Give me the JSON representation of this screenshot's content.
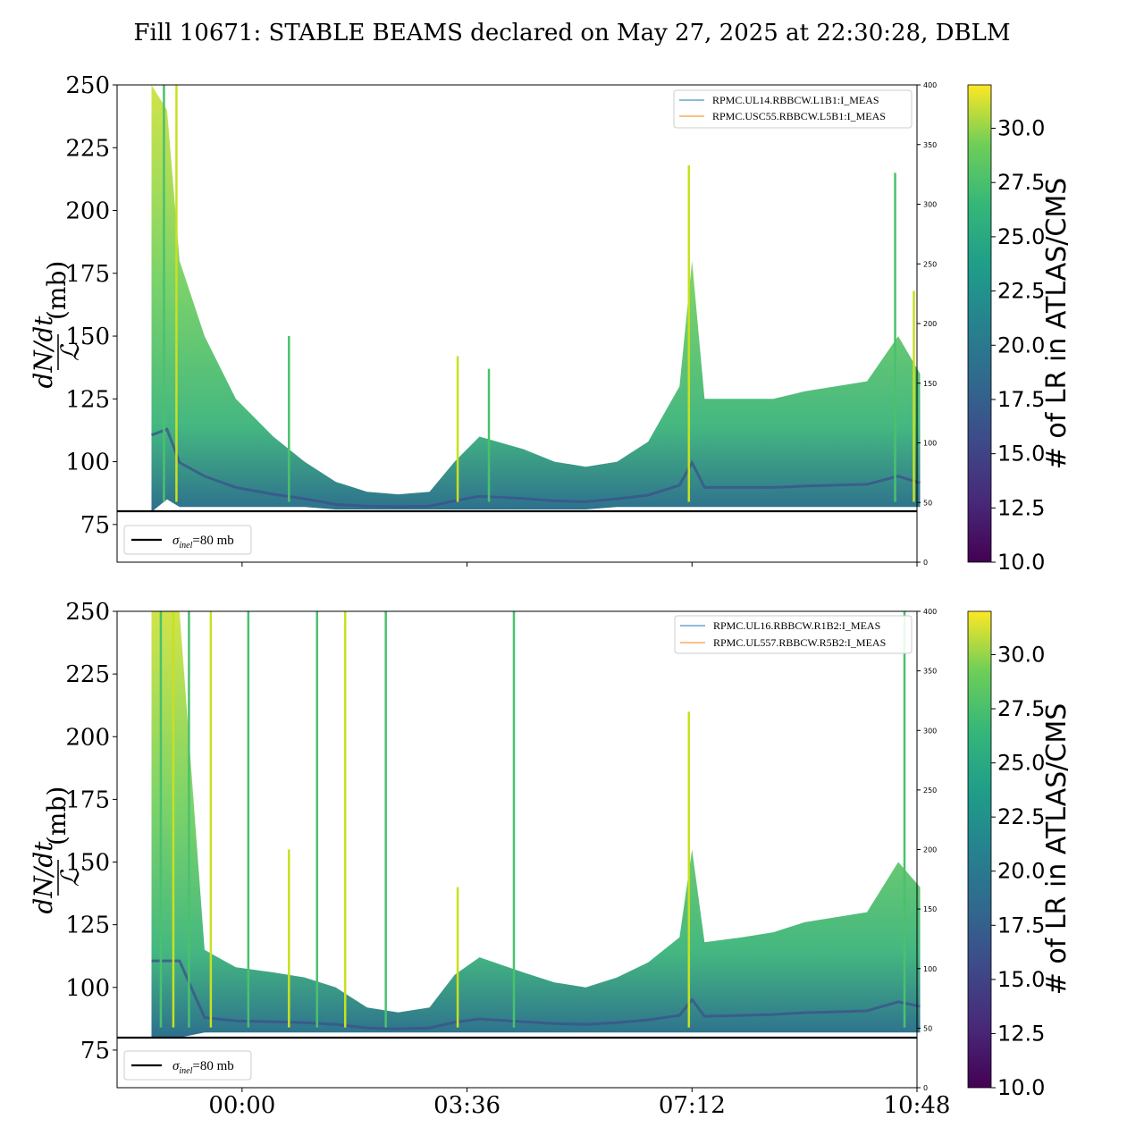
{
  "chart_data": {
    "title": "Fill 10671: STABLE BEAMS declared on May 27, 2025 at 22:30:28, DBLM",
    "type": "scatter",
    "x_ticks": [
      "00:00",
      "03:36",
      "07:12",
      "10:48"
    ],
    "x_tick_hours": [
      24.0,
      27.6,
      31.2,
      34.8
    ],
    "xlim_hours": [
      22.0,
      34.8
    ],
    "ylabel_unit": "(mb)",
    "ylabel_math": {
      "num": "dN/dt",
      "den": "ℒ"
    },
    "ylim": [
      60,
      250
    ],
    "y_ticks": [
      "75",
      "100",
      "125",
      "150",
      "175",
      "200",
      "225",
      "250"
    ],
    "y_tick_values": [
      75,
      100,
      125,
      150,
      175,
      200,
      225,
      250
    ],
    "right_ylim": [
      0,
      400
    ],
    "right_ticks": [
      "0",
      "50",
      "100",
      "150",
      "200",
      "250",
      "300",
      "350",
      "400"
    ],
    "right_tick_values": [
      0,
      50,
      100,
      150,
      200,
      250,
      300,
      350,
      400
    ],
    "colorbar": {
      "label": "# of LR in ATLAS/CMS",
      "range": [
        10,
        32
      ],
      "ticks": [
        "10.0",
        "12.5",
        "15.0",
        "17.5",
        "20.0",
        "22.5",
        "25.0",
        "27.5",
        "30.0"
      ],
      "tick_values": [
        10.0,
        12.5,
        15.0,
        17.5,
        20.0,
        22.5,
        25.0,
        27.5,
        30.0
      ],
      "colormap": "viridis"
    },
    "reference_line": {
      "label": "σinel=80 mb",
      "sym": "σ",
      "sub": "inel",
      "rest": "=80 mb",
      "value": 80,
      "color": "#000000"
    },
    "panels": [
      {
        "series": [
          {
            "name": "RPMC.UL14.RBBCW.L1B1:I_MEAS",
            "color": "#1f77b4"
          },
          {
            "name": "RPMC.USC55.RBBCW.L5B1:I_MEAS",
            "color": "#ff7f0e"
          }
        ],
        "envelope_hours": [
          22.55,
          22.8,
          23.0,
          23.4,
          23.9,
          24.5,
          25.0,
          25.5,
          26.0,
          26.5,
          27.0,
          27.4,
          27.8,
          28.5,
          29.0,
          29.5,
          30.0,
          30.5,
          31.0,
          31.2,
          31.4,
          32.0,
          32.5,
          33.0,
          33.5,
          34.0,
          34.5,
          34.85
        ],
        "envelope_upper": [
          250,
          240,
          180,
          150,
          125,
          110,
          100,
          92,
          88,
          87,
          88,
          100,
          110,
          105,
          100,
          98,
          100,
          108,
          130,
          180,
          125,
          125,
          125,
          128,
          130,
          132,
          150,
          135
        ],
        "envelope_lower": [
          80,
          85,
          82,
          82,
          82,
          82,
          82,
          81,
          81,
          81,
          81,
          81,
          81,
          81,
          81,
          81,
          82,
          82,
          82,
          82,
          82,
          82,
          82,
          82,
          82,
          82,
          82,
          82
        ],
        "spikes": [
          [
            22.75,
            250
          ],
          [
            22.95,
            250
          ],
          [
            24.75,
            150
          ],
          [
            27.45,
            142
          ],
          [
            27.95,
            137
          ],
          [
            31.15,
            218
          ],
          [
            34.45,
            215
          ],
          [
            34.75,
            168
          ]
        ]
      },
      {
        "series": [
          {
            "name": "RPMC.UL16.RBBCW.R1B2:I_MEAS",
            "color": "#1f77b4"
          },
          {
            "name": "RPMC.UL557.RBBCW.R5B2:I_MEAS",
            "color": "#ff7f0e"
          }
        ],
        "envelope_hours": [
          22.55,
          22.8,
          23.0,
          23.4,
          23.9,
          24.5,
          25.0,
          25.5,
          26.0,
          26.5,
          27.0,
          27.4,
          27.8,
          28.5,
          29.0,
          29.5,
          30.0,
          30.5,
          31.0,
          31.2,
          31.4,
          32.0,
          32.5,
          33.0,
          33.5,
          34.0,
          34.5,
          34.85
        ],
        "envelope_upper": [
          250,
          250,
          250,
          115,
          108,
          106,
          104,
          100,
          92,
          90,
          92,
          105,
          112,
          106,
          102,
          100,
          104,
          110,
          120,
          155,
          118,
          120,
          122,
          126,
          128,
          130,
          150,
          140
        ],
        "envelope_lower": [
          80,
          80,
          80,
          82,
          82,
          82,
          82,
          82,
          82,
          82,
          82,
          82,
          82,
          82,
          82,
          82,
          82,
          82,
          82,
          82,
          82,
          82,
          82,
          82,
          82,
          82,
          82,
          82
        ],
        "spikes": [
          [
            22.7,
            250
          ],
          [
            22.9,
            250
          ],
          [
            23.15,
            250
          ],
          [
            23.5,
            250
          ],
          [
            24.1,
            250
          ],
          [
            24.75,
            155
          ],
          [
            25.2,
            250
          ],
          [
            25.65,
            250
          ],
          [
            26.3,
            250
          ],
          [
            27.45,
            140
          ],
          [
            28.35,
            250
          ],
          [
            31.15,
            210
          ],
          [
            34.6,
            250
          ]
        ]
      }
    ]
  }
}
